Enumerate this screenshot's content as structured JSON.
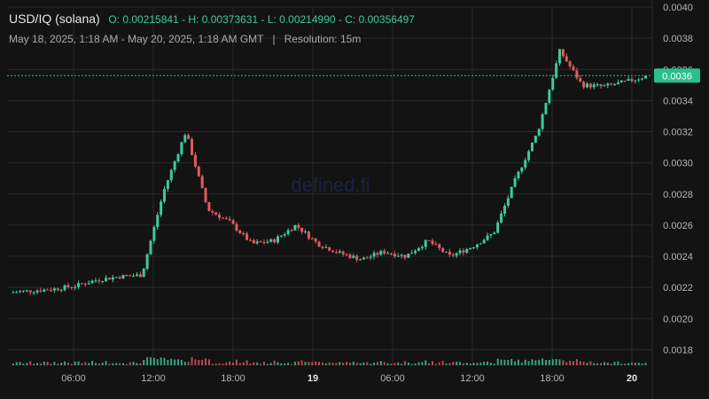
{
  "header": {
    "pair": "USD/IQ (solana)",
    "open": "O: 0.00215841",
    "high": "H: 0.00373631",
    "low": "L: 0.00214990",
    "close": "C: 0.00356497",
    "range": "May 18, 2025, 1:18 AM - May 20, 2025, 1:18 AM GMT",
    "separator": "|",
    "resolution": "Resolution: 15m"
  },
  "watermark": "defined.fi",
  "colors": {
    "background": "#131313",
    "up": "#3fc9a0",
    "down": "#e05a63",
    "grid": "#2a2a2a",
    "price_tag": "#2bbf8e"
  },
  "chart_data": {
    "type": "candlestick",
    "x_ticks": [
      "06:00",
      "12:00",
      "18:00",
      "19",
      "06:00",
      "12:00",
      "18:00",
      "20"
    ],
    "y_ticks": [
      "0.0040",
      "0.0038",
      "0.0036",
      "0.0034",
      "0.0032",
      "0.0030",
      "0.0028",
      "0.0026",
      "0.0024",
      "0.0022",
      "0.0020",
      "0.0018"
    ],
    "ylim": [
      0.0017,
      0.004
    ],
    "current_price": 0.00356,
    "current_price_label": "0.0036",
    "series": [
      {
        "t": -2,
        "o": 0.002158,
        "c": 0.002168
      },
      {
        "t": 0,
        "o": 0.002168,
        "c": 0.00219
      },
      {
        "t": 1,
        "o": 0.00219,
        "c": 0.00221
      },
      {
        "t": 2,
        "o": 0.00221,
        "c": 0.00225
      },
      {
        "t": 3,
        "o": 0.00225,
        "c": 0.00227
      },
      {
        "t": 4,
        "o": 0.00227,
        "c": 0.00228
      },
      {
        "t": 5,
        "o": 0.00228,
        "c": 0.00282
      },
      {
        "t": 6,
        "o": 0.00282,
        "c": 0.0032
      },
      {
        "t": 7,
        "o": 0.0032,
        "c": 0.0027
      },
      {
        "t": 8,
        "o": 0.0027,
        "c": 0.00262
      },
      {
        "t": 9,
        "o": 0.00262,
        "c": 0.00248
      },
      {
        "t": 10,
        "o": 0.00248,
        "c": 0.0025
      },
      {
        "t": 11,
        "o": 0.0025,
        "c": 0.0026
      },
      {
        "t": 12,
        "o": 0.0026,
        "c": 0.00248
      },
      {
        "t": 13,
        "o": 0.00248,
        "c": 0.00242
      },
      {
        "t": 14,
        "o": 0.00242,
        "c": 0.00238
      },
      {
        "t": 15,
        "o": 0.00238,
        "c": 0.00243
      },
      {
        "t": 16,
        "o": 0.00243,
        "c": 0.0024
      },
      {
        "t": 17,
        "o": 0.0024,
        "c": 0.0025
      },
      {
        "t": 18,
        "o": 0.0025,
        "c": 0.0024
      },
      {
        "t": 19,
        "o": 0.0024,
        "c": 0.00246
      },
      {
        "t": 20,
        "o": 0.00246,
        "c": 0.00255
      },
      {
        "t": 21,
        "o": 0.00255,
        "c": 0.0029
      },
      {
        "t": 22,
        "o": 0.0029,
        "c": 0.0032
      },
      {
        "t": 23,
        "o": 0.0032,
        "c": 0.00372
      },
      {
        "t": 24,
        "o": 0.00372,
        "c": 0.0035
      },
      {
        "t": 25,
        "o": 0.0035,
        "c": 0.00349
      },
      {
        "t": 26,
        "o": 0.00349,
        "c": 0.00352
      },
      {
        "t": 27,
        "o": 0.00352,
        "c": 0.00356
      }
    ]
  }
}
